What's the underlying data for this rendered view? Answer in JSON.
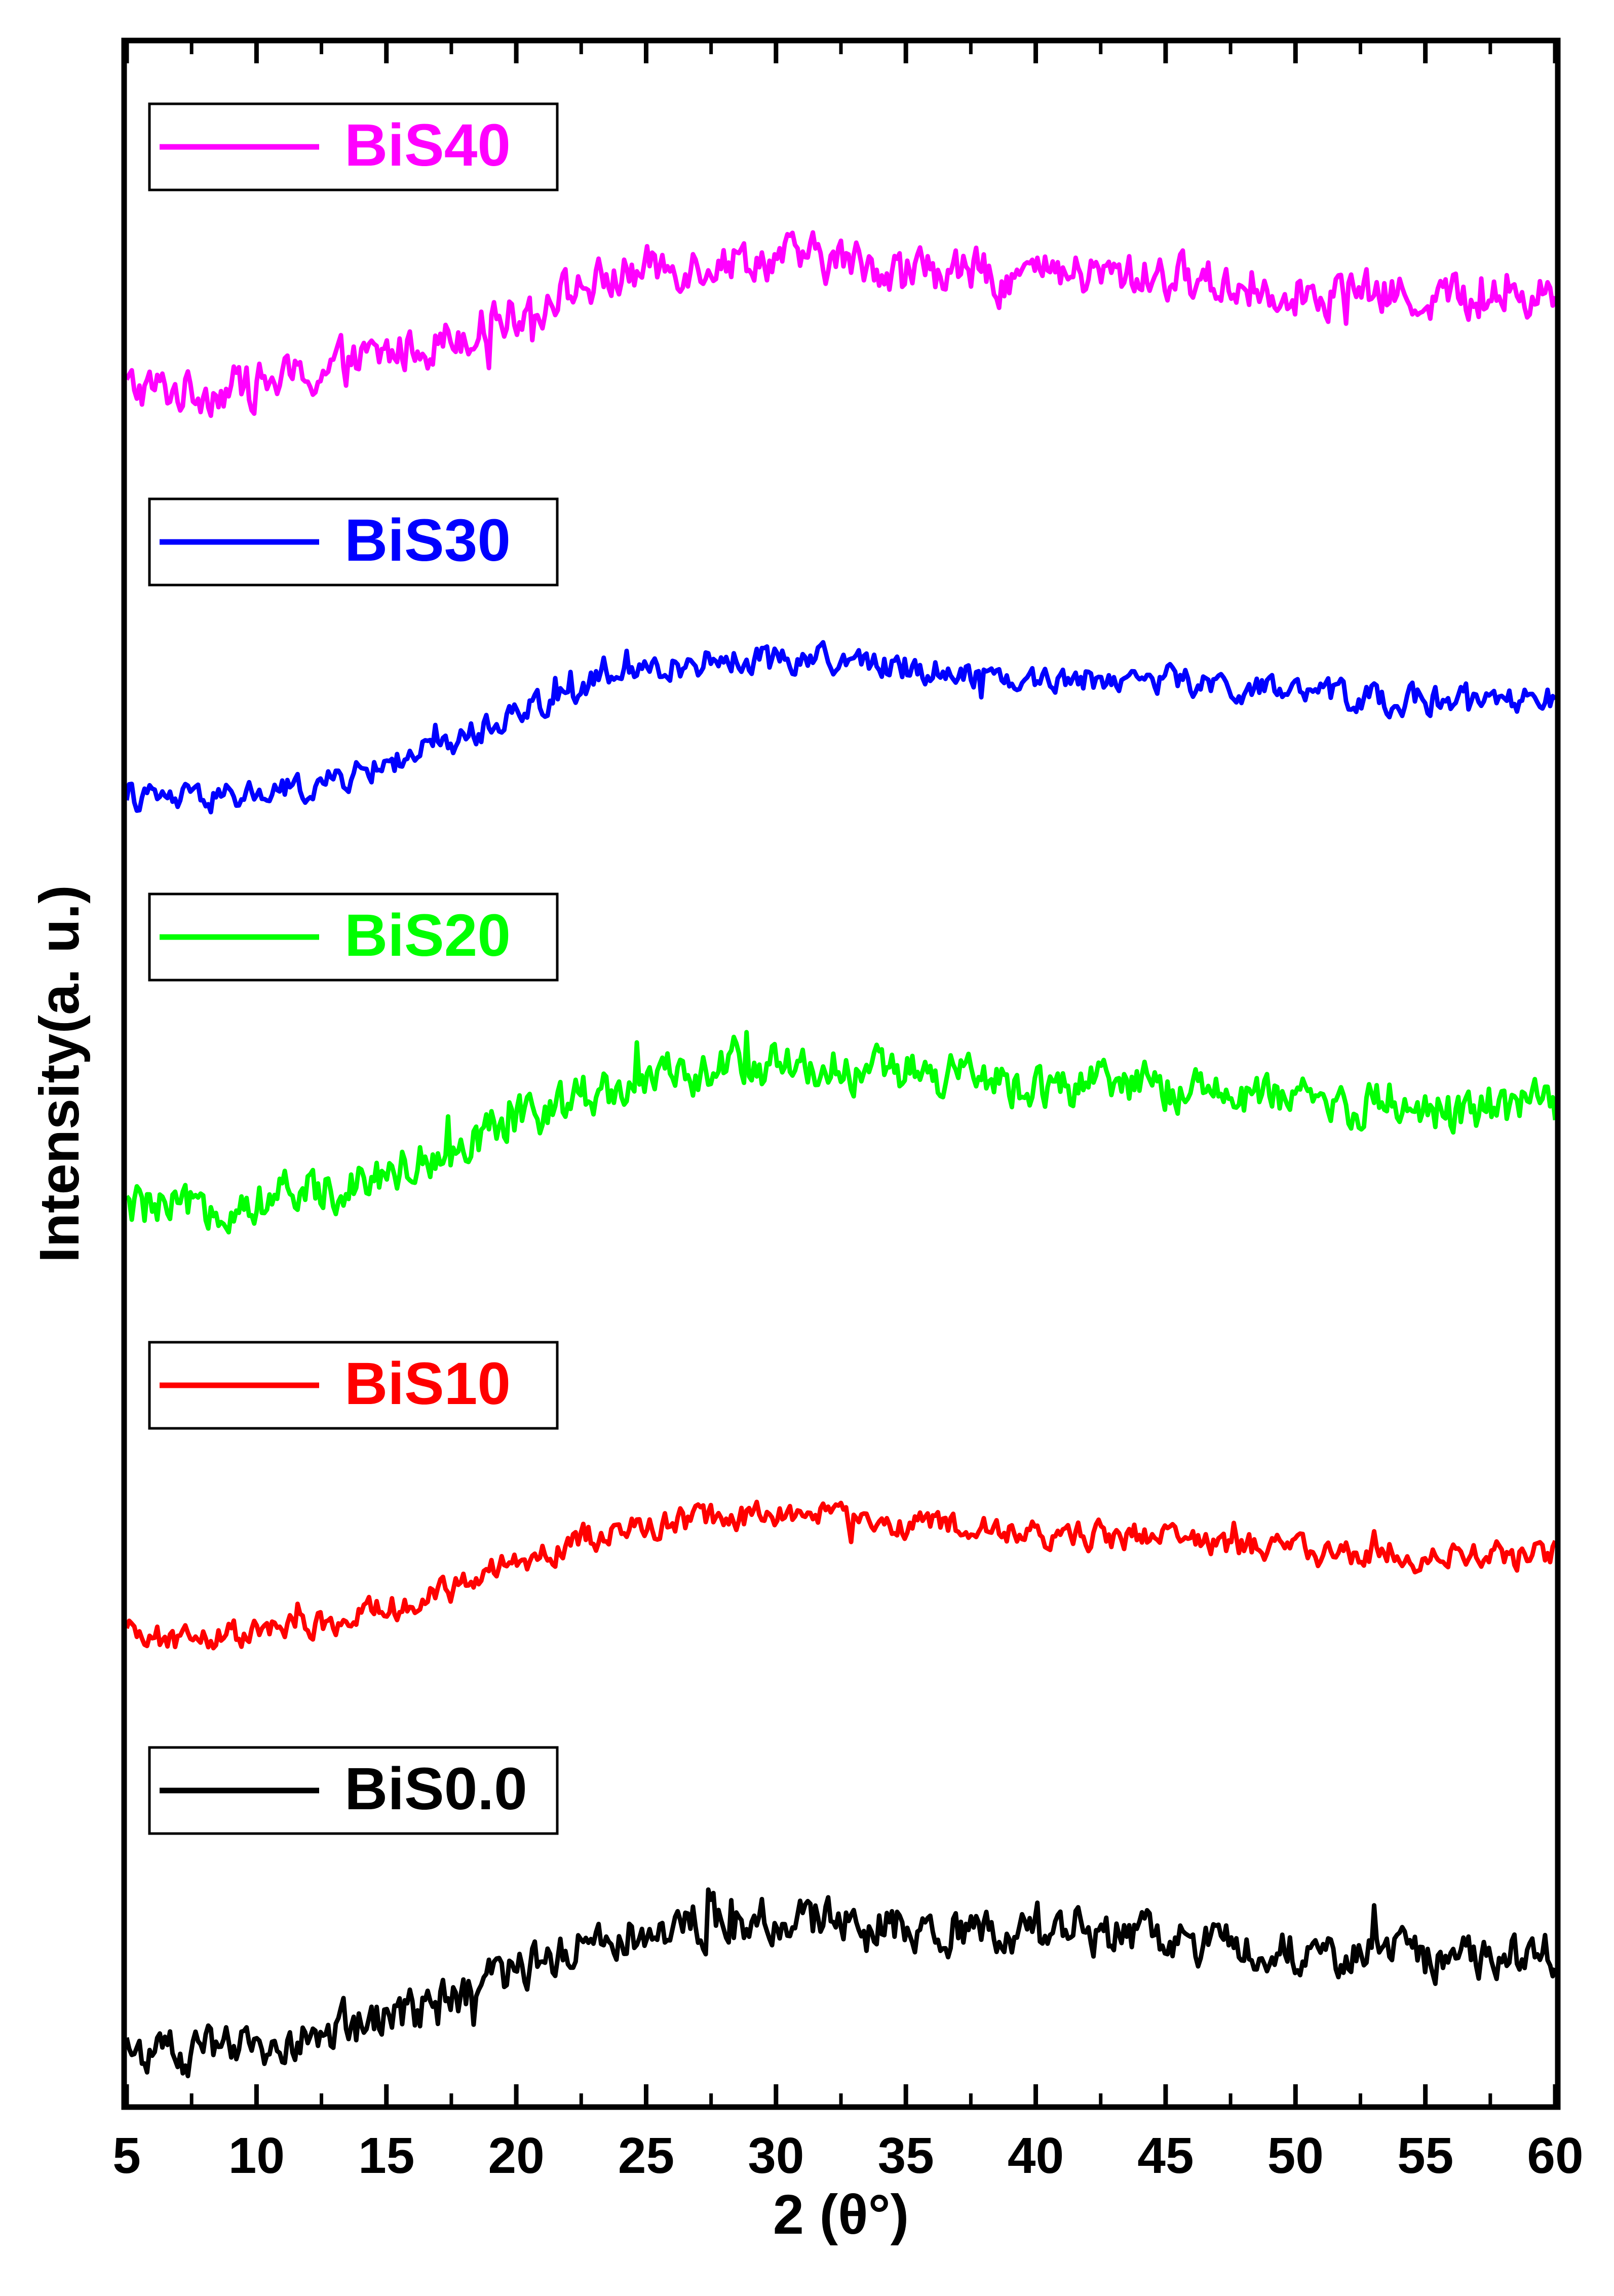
{
  "chart_data": {
    "type": "line",
    "xlabel": "2 (θ°)",
    "ylabel": "Intensity(a. u.)",
    "xlim": [
      5,
      60
    ],
    "x_ticks": [
      5,
      10,
      15,
      20,
      25,
      30,
      35,
      40,
      45,
      50,
      55,
      60
    ],
    "y_ticks_labeled": false,
    "grid": false,
    "legend_placement": "stacked boxes above each curve, left",
    "series": [
      {
        "name": "BiS40",
        "color": "#ff00ff",
        "offset": 4,
        "x": [
          5,
          7.5,
          10,
          12.5,
          15,
          17.5,
          20,
          22.5,
          25,
          27.5,
          30,
          32.5,
          35,
          37.5,
          40,
          42.5,
          45,
          47.5,
          50,
          52.5,
          55,
          57.5,
          60
        ],
        "y": [
          0.04,
          0.03,
          0.05,
          0.09,
          0.15,
          0.21,
          0.29,
          0.37,
          0.43,
          0.46,
          0.47,
          0.46,
          0.43,
          0.42,
          0.41,
          0.41,
          0.41,
          0.38,
          0.36,
          0.35,
          0.34,
          0.34,
          0.35
        ]
      },
      {
        "name": "BiS30",
        "color": "#0000ff",
        "offset": 3,
        "x": [
          5,
          7.5,
          10,
          12.5,
          15,
          17.5,
          20,
          22.5,
          25,
          27.5,
          30,
          32.5,
          35,
          37.5,
          40,
          42.5,
          45,
          47.5,
          50,
          52.5,
          55,
          57.5,
          60
        ],
        "y": [
          0.06,
          0.05,
          0.07,
          0.1,
          0.17,
          0.24,
          0.34,
          0.43,
          0.48,
          0.51,
          0.52,
          0.51,
          0.49,
          0.47,
          0.45,
          0.45,
          0.45,
          0.42,
          0.4,
          0.39,
          0.38,
          0.37,
          0.38
        ]
      },
      {
        "name": "BiS20",
        "color": "#00ff00",
        "offset": 2,
        "x": [
          5,
          7.5,
          10,
          12.5,
          15,
          17.5,
          20,
          22.5,
          25,
          27.5,
          30,
          32.5,
          35,
          37.5,
          40,
          42.5,
          45,
          47.5,
          50,
          52.5,
          55,
          57.5,
          60
        ],
        "y": [
          0.06,
          0.05,
          0.08,
          0.12,
          0.18,
          0.25,
          0.34,
          0.43,
          0.48,
          0.52,
          0.53,
          0.52,
          0.5,
          0.48,
          0.46,
          0.46,
          0.46,
          0.43,
          0.41,
          0.4,
          0.39,
          0.39,
          0.4
        ]
      },
      {
        "name": "BiS10",
        "color": "#ff0000",
        "offset": 1,
        "x": [
          5,
          7.5,
          10,
          12.5,
          15,
          17.5,
          20,
          22.5,
          25,
          27.5,
          30,
          32.5,
          35,
          37.5,
          40,
          42.5,
          45,
          47.5,
          50,
          52.5,
          55,
          57.5,
          60
        ],
        "y": [
          0.05,
          0.04,
          0.06,
          0.09,
          0.14,
          0.2,
          0.29,
          0.37,
          0.41,
          0.44,
          0.45,
          0.44,
          0.42,
          0.4,
          0.38,
          0.38,
          0.38,
          0.35,
          0.33,
          0.32,
          0.31,
          0.31,
          0.32
        ]
      },
      {
        "name": "BiS0.0",
        "color": "#000000",
        "offset": 0,
        "x": [
          5,
          7.5,
          10,
          12.5,
          15,
          17.5,
          20,
          22.5,
          25,
          27.5,
          30,
          32.5,
          35,
          37.5,
          40,
          42.5,
          45,
          47.5,
          50,
          52.5,
          55,
          57.5,
          60
        ],
        "y": [
          0.04,
          0.03,
          0.05,
          0.09,
          0.15,
          0.22,
          0.31,
          0.4,
          0.44,
          0.47,
          0.48,
          0.47,
          0.45,
          0.44,
          0.42,
          0.42,
          0.42,
          0.39,
          0.37,
          0.36,
          0.35,
          0.35,
          0.36
        ]
      }
    ]
  }
}
